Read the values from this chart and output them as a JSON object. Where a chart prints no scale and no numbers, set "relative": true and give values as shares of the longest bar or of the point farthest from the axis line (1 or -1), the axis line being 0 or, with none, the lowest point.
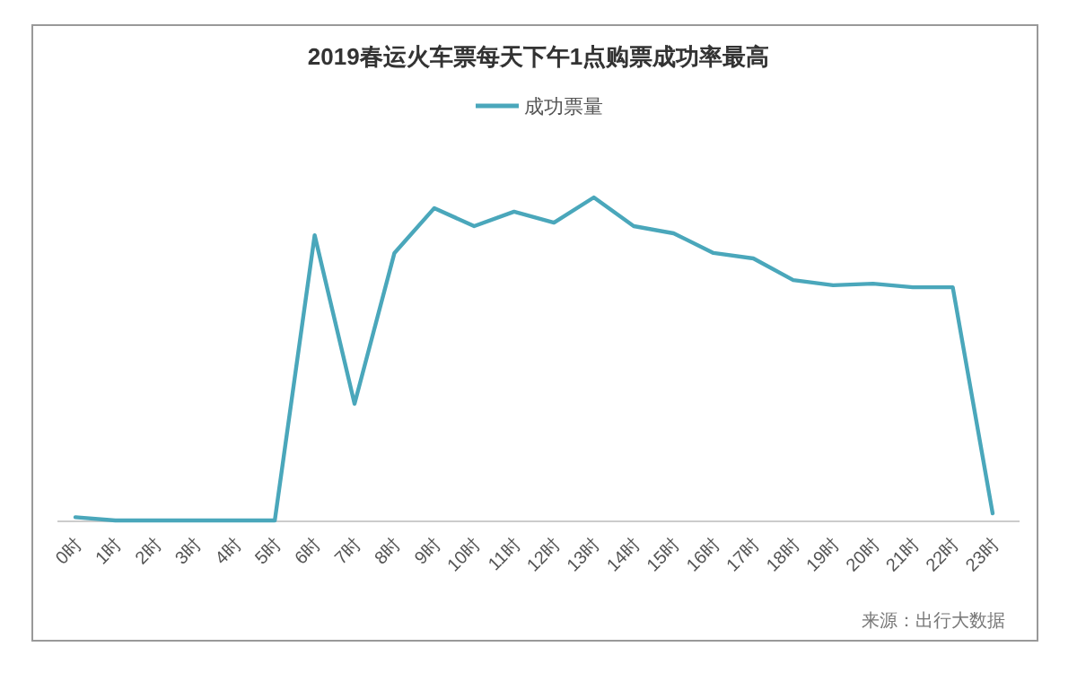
{
  "chart_data": {
    "type": "line",
    "title": "2019春运火车票每天下午1点购票成功率最高",
    "relative": true,
    "legend": "top",
    "marker": "none",
    "categories": [
      "0时",
      "1时",
      "2时",
      "3时",
      "4时",
      "5时",
      "6时",
      "7时",
      "8时",
      "9时",
      "10时",
      "11时",
      "12时",
      "13时",
      "14时",
      "15时",
      "16时",
      "17时",
      "18时",
      "19时",
      "20时",
      "21时",
      "22时",
      "23时"
    ],
    "series": [
      {
        "name": "成功票量",
        "color": "#4aa7bb",
        "values": [
          0.01,
          0,
          0,
          0,
          0,
          0,
          0.883,
          0.361,
          0.828,
          0.967,
          0.911,
          0.956,
          0.922,
          1,
          0.911,
          0.889,
          0.828,
          0.811,
          0.744,
          0.728,
          0.733,
          0.722,
          0.722,
          0.022
        ]
      }
    ],
    "annotations": [
      "来源：出行大数据"
    ]
  }
}
